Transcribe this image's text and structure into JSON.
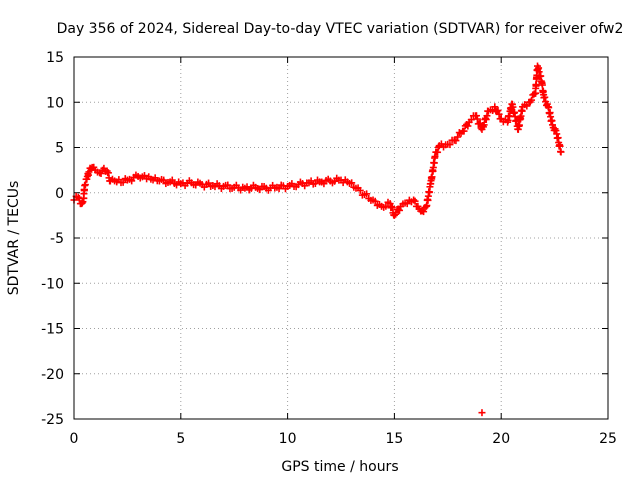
{
  "chart_data": {
    "type": "scatter",
    "title": "Day 356 of 2024, Sidereal Day-to-day VTEC variation (SDTVAR) for receiver ofw2",
    "xlabel": "GPS time / hours",
    "ylabel": "SDTVAR / TECUs",
    "xlim": [
      0,
      25
    ],
    "ylim": [
      -25,
      15
    ],
    "x_ticks": [
      0,
      5,
      10,
      15,
      20,
      25
    ],
    "y_ticks": [
      -25,
      -20,
      -15,
      -10,
      -5,
      0,
      5,
      10,
      15
    ],
    "grid": true,
    "marker": "+",
    "color": "#ff0000",
    "series": [
      {
        "name": "SDTVAR",
        "points": [
          [
            0.0,
            -0.8
          ],
          [
            0.2,
            -0.5
          ],
          [
            0.35,
            -1.2
          ],
          [
            0.45,
            -0.6
          ],
          [
            0.5,
            0.8
          ],
          [
            0.6,
            1.5
          ],
          [
            0.7,
            2.3
          ],
          [
            0.85,
            2.8
          ],
          [
            1.0,
            2.5
          ],
          [
            1.2,
            2.2
          ],
          [
            1.4,
            2.7
          ],
          [
            1.55,
            2.4
          ],
          [
            1.7,
            1.3
          ],
          [
            2.0,
            1.2
          ],
          [
            2.5,
            1.4
          ],
          [
            3.0,
            1.8
          ],
          [
            3.3,
            1.9
          ],
          [
            3.6,
            1.5
          ],
          [
            4.0,
            1.3
          ],
          [
            4.5,
            1.2
          ],
          [
            5.0,
            1.0
          ],
          [
            5.5,
            1.1
          ],
          [
            6.0,
            0.9
          ],
          [
            6.5,
            0.8
          ],
          [
            7.0,
            0.7
          ],
          [
            7.5,
            0.6
          ],
          [
            8.0,
            0.5
          ],
          [
            8.5,
            0.6
          ],
          [
            9.0,
            0.5
          ],
          [
            9.5,
            0.6
          ],
          [
            10.0,
            0.7
          ],
          [
            10.5,
            0.9
          ],
          [
            11.0,
            1.1
          ],
          [
            11.5,
            1.2
          ],
          [
            12.0,
            1.3
          ],
          [
            12.5,
            1.4
          ],
          [
            12.8,
            1.2
          ],
          [
            13.2,
            0.5
          ],
          [
            13.6,
            -0.2
          ],
          [
            14.0,
            -0.8
          ],
          [
            14.4,
            -1.5
          ],
          [
            14.8,
            -1.2
          ],
          [
            15.0,
            -2.5
          ],
          [
            15.3,
            -1.5
          ],
          [
            15.6,
            -1.2
          ],
          [
            15.9,
            -0.8
          ],
          [
            16.1,
            -1.5
          ],
          [
            16.3,
            -2.0
          ],
          [
            16.5,
            -1.5
          ],
          [
            16.7,
            1.0
          ],
          [
            16.9,
            4.0
          ],
          [
            17.1,
            5.2
          ],
          [
            17.4,
            5.3
          ],
          [
            17.8,
            5.8
          ],
          [
            18.2,
            6.8
          ],
          [
            18.5,
            7.8
          ],
          [
            18.8,
            8.5
          ],
          [
            19.1,
            7.0
          ],
          [
            19.4,
            9.0
          ],
          [
            19.7,
            9.5
          ],
          [
            20.0,
            8.2
          ],
          [
            20.3,
            7.8
          ],
          [
            20.5,
            9.8
          ],
          [
            20.8,
            7.0
          ],
          [
            21.0,
            9.5
          ],
          [
            21.3,
            10.0
          ],
          [
            21.6,
            11.0
          ],
          [
            21.7,
            14.0
          ],
          [
            21.9,
            12.2
          ],
          [
            22.0,
            10.5
          ],
          [
            22.2,
            9.5
          ],
          [
            22.4,
            7.5
          ],
          [
            22.6,
            6.5
          ],
          [
            22.8,
            4.5
          ],
          [
            19.1,
            -24.3
          ]
        ]
      }
    ]
  }
}
